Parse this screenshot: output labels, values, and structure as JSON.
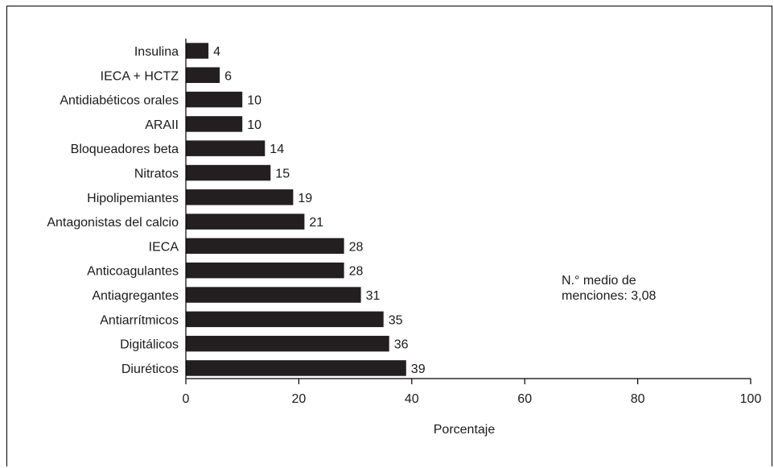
{
  "chart_data": {
    "type": "bar",
    "orientation": "horizontal",
    "categories": [
      "Insulina",
      "IECA + HCTZ",
      "Antidiabéticos orales",
      "ARAII",
      "Bloqueadores beta",
      "Nitratos",
      "Hipolipemiantes",
      "Antagonistas del calcio",
      "IECA",
      "Anticoagulantes",
      "Antiagregantes",
      "Antiarrítmicos",
      "Digitálicos",
      "Diuréticos"
    ],
    "values": [
      4,
      6,
      10,
      10,
      14,
      15,
      19,
      21,
      28,
      28,
      31,
      35,
      36,
      39
    ],
    "value_labels": [
      "4",
      "6",
      "10",
      "10",
      "14",
      "15",
      "19",
      "21",
      "28",
      "28",
      "31",
      "35",
      "36",
      "39"
    ],
    "xlabel": "Porcentaje",
    "xlim": [
      0,
      100
    ],
    "xticks": [
      0,
      20,
      40,
      60,
      80,
      100
    ],
    "grid": false,
    "bar_color": "#231f20",
    "annotation": [
      "N.° medio de",
      "menciones: 3,08"
    ]
  }
}
